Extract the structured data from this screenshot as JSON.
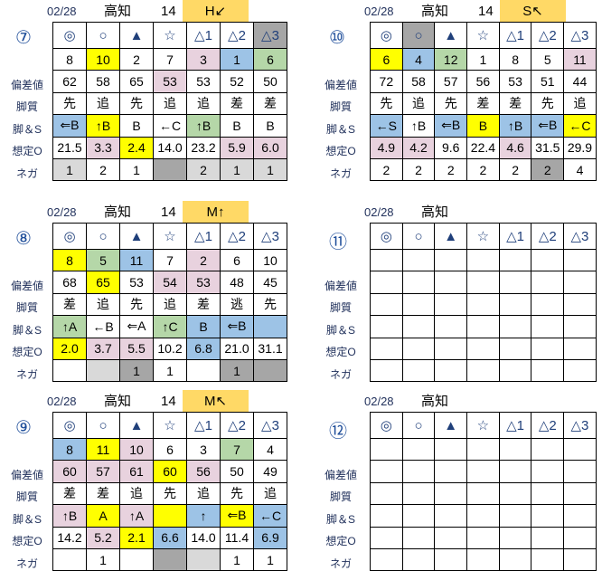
{
  "colors": {
    "Y": "#ffff00",
    "P": "#e8d2de",
    "B": "#9dc3e6",
    "G": "#b5d7a8",
    "D": "#a6a6a6",
    "L": "#d9d9d9",
    "mark": "#ffd966"
  },
  "row_labels": [
    "偏差値",
    "脚質",
    "脚＆S",
    "想定O",
    "ネガ"
  ],
  "blocks": [
    {
      "num": "⑦",
      "date": "02/28",
      "venue": "高知",
      "race": "14",
      "mark": "H↙",
      "rows": [
        [
          [
            "◎"
          ],
          [
            "○"
          ],
          [
            "▲"
          ],
          [
            "☆"
          ],
          [
            "△1"
          ],
          [
            "△2"
          ],
          [
            "△3",
            "D"
          ]
        ],
        [
          [
            "8"
          ],
          [
            "10",
            "Y"
          ],
          [
            "2"
          ],
          [
            "7"
          ],
          [
            "3",
            "P"
          ],
          [
            "1",
            "B"
          ],
          [
            "6",
            "G"
          ]
        ],
        [
          [
            "62"
          ],
          [
            "58"
          ],
          [
            "65"
          ],
          [
            "53",
            "P"
          ],
          [
            "53"
          ],
          [
            "52"
          ],
          [
            "50"
          ]
        ],
        [
          [
            "先"
          ],
          [
            "追"
          ],
          [
            "先"
          ],
          [
            "追"
          ],
          [
            "追"
          ],
          [
            "差"
          ],
          [
            "差"
          ]
        ],
        [
          [
            "⇐B",
            "B"
          ],
          [
            "↑B",
            "Y"
          ],
          [
            "B"
          ],
          [
            "←C"
          ],
          [
            "↑B",
            "G"
          ],
          [
            "B"
          ],
          [
            "B"
          ]
        ],
        [
          [
            "21.5"
          ],
          [
            "3.3",
            "P"
          ],
          [
            "2.4",
            "Y"
          ],
          [
            "14.0"
          ],
          [
            "23.2"
          ],
          [
            "5.9",
            "P"
          ],
          [
            "6.0",
            "P"
          ]
        ],
        [
          [
            "1",
            "L"
          ],
          [
            "2"
          ],
          [
            "1"
          ],
          [
            "",
            "D"
          ],
          [
            "2",
            "L"
          ],
          [
            "1",
            "L"
          ],
          [
            "1",
            "L"
          ]
        ]
      ]
    },
    {
      "num": "⑩",
      "date": "02/28",
      "venue": "高知",
      "race": "14",
      "mark": "S↖",
      "rows": [
        [
          [
            "◎"
          ],
          [
            "○",
            "D"
          ],
          [
            "▲"
          ],
          [
            "☆"
          ],
          [
            "△1"
          ],
          [
            "△2"
          ],
          [
            "△3"
          ]
        ],
        [
          [
            "6",
            "Y"
          ],
          [
            "4",
            "B"
          ],
          [
            "12",
            "G"
          ],
          [
            "1"
          ],
          [
            "8"
          ],
          [
            "5"
          ],
          [
            "11",
            "P"
          ]
        ],
        [
          [
            "72"
          ],
          [
            "58"
          ],
          [
            "57"
          ],
          [
            "56"
          ],
          [
            "53"
          ],
          [
            "51"
          ],
          [
            "44"
          ]
        ],
        [
          [
            "先"
          ],
          [
            "追"
          ],
          [
            "先"
          ],
          [
            "差"
          ],
          [
            "差"
          ],
          [
            "先"
          ],
          [
            "追"
          ]
        ],
        [
          [
            "←S",
            "B"
          ],
          [
            "↑B"
          ],
          [
            "⇐B",
            "B"
          ],
          [
            "B",
            "Y"
          ],
          [
            "↑B",
            "B"
          ],
          [
            "⇐B",
            "B"
          ],
          [
            "←C",
            "Y"
          ]
        ],
        [
          [
            "4.9",
            "P"
          ],
          [
            "4.2",
            "P"
          ],
          [
            "9.6"
          ],
          [
            "22.4"
          ],
          [
            "4.6",
            "P"
          ],
          [
            "31.5"
          ],
          [
            "29.9"
          ]
        ],
        [
          [
            "2"
          ],
          [
            "2"
          ],
          [
            "2"
          ],
          [
            "2"
          ],
          [
            "2"
          ],
          [
            "2",
            "D"
          ],
          [
            "4"
          ]
        ]
      ]
    },
    {
      "num": "⑧",
      "date": "02/28",
      "venue": "高知",
      "race": "14",
      "mark": "M↑",
      "rows": [
        [
          [
            "◎"
          ],
          [
            "○"
          ],
          [
            "▲"
          ],
          [
            "☆"
          ],
          [
            "△1"
          ],
          [
            "△2"
          ],
          [
            "△3"
          ]
        ],
        [
          [
            "8",
            "Y"
          ],
          [
            "5",
            "G"
          ],
          [
            "11",
            "B"
          ],
          [
            "7"
          ],
          [
            "2",
            "P"
          ],
          [
            "6"
          ],
          [
            "10"
          ]
        ],
        [
          [
            "68"
          ],
          [
            "65",
            "Y"
          ],
          [
            "53"
          ],
          [
            "54",
            "P"
          ],
          [
            "53",
            "P"
          ],
          [
            "48"
          ],
          [
            "45"
          ]
        ],
        [
          [
            "差"
          ],
          [
            "追"
          ],
          [
            "先"
          ],
          [
            "追"
          ],
          [
            "差"
          ],
          [
            "逃"
          ],
          [
            "先"
          ]
        ],
        [
          [
            "↑A",
            "G"
          ],
          [
            "←B"
          ],
          [
            "⇐A"
          ],
          [
            "↑C",
            "G"
          ],
          [
            "B",
            "B"
          ],
          [
            "⇐B",
            "B"
          ],
          [
            "",
            "B"
          ]
        ],
        [
          [
            "2.0",
            "Y"
          ],
          [
            "3.7",
            "P"
          ],
          [
            "5.5",
            "P"
          ],
          [
            "10.2"
          ],
          [
            "6.8",
            "B"
          ],
          [
            "21.0"
          ],
          [
            "31.1"
          ]
        ],
        [
          [
            ""
          ],
          [
            "",
            "L"
          ],
          [
            "1",
            "D"
          ],
          [
            "1"
          ],
          [
            ""
          ],
          [
            "1",
            "D"
          ],
          [
            "",
            "D"
          ]
        ]
      ]
    },
    {
      "num": "⑪",
      "date": "02/28",
      "venue": "高知",
      "race": "",
      "mark": "",
      "rows": [
        [
          [
            "◎"
          ],
          [
            "○"
          ],
          [
            "▲"
          ],
          [
            "☆"
          ],
          [
            "△1"
          ],
          [
            "△2"
          ],
          [
            "△3"
          ]
        ],
        [
          [
            ""
          ],
          [
            ""
          ],
          [
            ""
          ],
          [
            ""
          ],
          [
            ""
          ],
          [
            ""
          ],
          [
            ""
          ]
        ],
        [
          [
            ""
          ],
          [
            ""
          ],
          [
            ""
          ],
          [
            ""
          ],
          [
            ""
          ],
          [
            ""
          ],
          [
            ""
          ]
        ],
        [
          [
            ""
          ],
          [
            ""
          ],
          [
            ""
          ],
          [
            ""
          ],
          [
            ""
          ],
          [
            ""
          ],
          [
            ""
          ]
        ],
        [
          [
            ""
          ],
          [
            ""
          ],
          [
            ""
          ],
          [
            ""
          ],
          [
            ""
          ],
          [
            ""
          ],
          [
            ""
          ]
        ],
        [
          [
            ""
          ],
          [
            ""
          ],
          [
            ""
          ],
          [
            ""
          ],
          [
            ""
          ],
          [
            ""
          ],
          [
            ""
          ]
        ],
        [
          [
            ""
          ],
          [
            ""
          ],
          [
            ""
          ],
          [
            ""
          ],
          [
            ""
          ],
          [
            ""
          ],
          [
            ""
          ]
        ]
      ]
    },
    {
      "num": "⑨",
      "date": "02/28",
      "venue": "高知",
      "race": "14",
      "mark": "M↖",
      "rows": [
        [
          [
            "◎"
          ],
          [
            "○"
          ],
          [
            "▲"
          ],
          [
            "☆"
          ],
          [
            "△1"
          ],
          [
            "△2"
          ],
          [
            "△3"
          ]
        ],
        [
          [
            "8",
            "B"
          ],
          [
            "11",
            "Y"
          ],
          [
            "10",
            "P"
          ],
          [
            "6"
          ],
          [
            "3"
          ],
          [
            "7",
            "G"
          ],
          [
            "4"
          ]
        ],
        [
          [
            "60",
            "P"
          ],
          [
            "57",
            "P"
          ],
          [
            "61",
            "P"
          ],
          [
            "60",
            "Y"
          ],
          [
            "56",
            "P"
          ],
          [
            "50"
          ],
          [
            "49"
          ]
        ],
        [
          [
            "差"
          ],
          [
            "差"
          ],
          [
            "追"
          ],
          [
            "先"
          ],
          [
            "追"
          ],
          [
            "先"
          ],
          [
            "追"
          ]
        ],
        [
          [
            "↑B",
            "P"
          ],
          [
            "A",
            "Y"
          ],
          [
            "↑A",
            "P"
          ],
          [
            "",
            "Y"
          ],
          [
            "↑",
            "B"
          ],
          [
            "⇐B",
            "Y"
          ],
          [
            "←C",
            "B"
          ]
        ],
        [
          [
            "14.2"
          ],
          [
            "5.2",
            "P"
          ],
          [
            "2.1",
            "Y"
          ],
          [
            "6.6",
            "B"
          ],
          [
            "14.0"
          ],
          [
            "11.4"
          ],
          [
            "6.9",
            "B"
          ]
        ],
        [
          [
            ""
          ],
          [
            "1"
          ],
          [
            ""
          ],
          [
            "",
            "D"
          ],
          [
            "",
            "L"
          ],
          [
            "1"
          ],
          [
            "1"
          ]
        ]
      ]
    },
    {
      "num": "⑫",
      "date": "02/28",
      "venue": "高知",
      "race": "",
      "mark": "",
      "rows": [
        [
          [
            "◎"
          ],
          [
            "○"
          ],
          [
            "▲"
          ],
          [
            "☆"
          ],
          [
            "△1"
          ],
          [
            "△2"
          ],
          [
            "△3"
          ]
        ],
        [
          [
            ""
          ],
          [
            ""
          ],
          [
            ""
          ],
          [
            ""
          ],
          [
            ""
          ],
          [
            ""
          ],
          [
            ""
          ]
        ],
        [
          [
            ""
          ],
          [
            ""
          ],
          [
            ""
          ],
          [
            ""
          ],
          [
            ""
          ],
          [
            ""
          ],
          [
            ""
          ]
        ],
        [
          [
            ""
          ],
          [
            ""
          ],
          [
            ""
          ],
          [
            ""
          ],
          [
            ""
          ],
          [
            ""
          ],
          [
            ""
          ]
        ],
        [
          [
            ""
          ],
          [
            ""
          ],
          [
            ""
          ],
          [
            ""
          ],
          [
            ""
          ],
          [
            ""
          ],
          [
            ""
          ]
        ],
        [
          [
            ""
          ],
          [
            ""
          ],
          [
            ""
          ],
          [
            ""
          ],
          [
            ""
          ],
          [
            ""
          ],
          [
            ""
          ]
        ],
        [
          [
            ""
          ],
          [
            ""
          ],
          [
            ""
          ],
          [
            ""
          ],
          [
            ""
          ],
          [
            ""
          ],
          [
            ""
          ]
        ]
      ]
    }
  ]
}
